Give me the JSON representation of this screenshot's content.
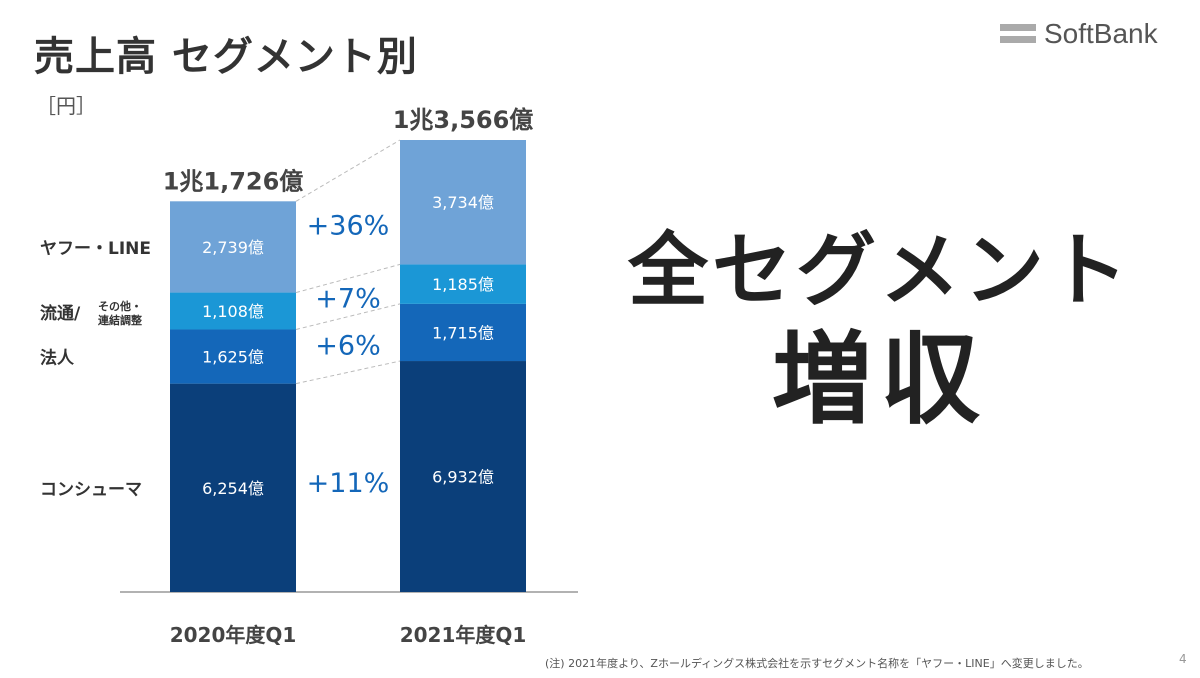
{
  "slide": {
    "title": "売上高 セグメント別",
    "unit": "［円］",
    "logo_text": "SoftBank",
    "headline_1": "全セグメント",
    "headline_2": "増収",
    "footnote": "(注) 2021年度より、Zホールディングス株式会社を示すセグメント名称を「ヤフー・LINE」へ変更しました。",
    "page_number": "4"
  },
  "chart_data": {
    "type": "bar",
    "stacked": true,
    "categories": [
      "2020年度Q1",
      "2021年度Q1"
    ],
    "totals": [
      "1兆1,726億",
      "1兆3,566億"
    ],
    "series": [
      {
        "name": "コンシューマ",
        "color": "#0b3f7a",
        "values": [
          6254,
          6932
        ],
        "labels": [
          "6,254億",
          "6,932億"
        ],
        "growth": "+11%"
      },
      {
        "name": "法人",
        "color": "#1467b9",
        "values": [
          1625,
          1715
        ],
        "labels": [
          "1,625億",
          "1,715億"
        ],
        "growth": "+6%"
      },
      {
        "name_line1": "流通/",
        "name_line2_a": "その他・",
        "name_line2_b": "連結調整",
        "color": "#1b97d6",
        "values": [
          1108,
          1185
        ],
        "labels": [
          "1,108億",
          "1,185億"
        ],
        "growth": "+7%"
      },
      {
        "name": "ヤフー・LINE",
        "color": "#6fa3d7",
        "values": [
          2739,
          3734
        ],
        "labels": [
          "2,739億",
          "3,734億"
        ],
        "growth": "+36%"
      }
    ]
  }
}
